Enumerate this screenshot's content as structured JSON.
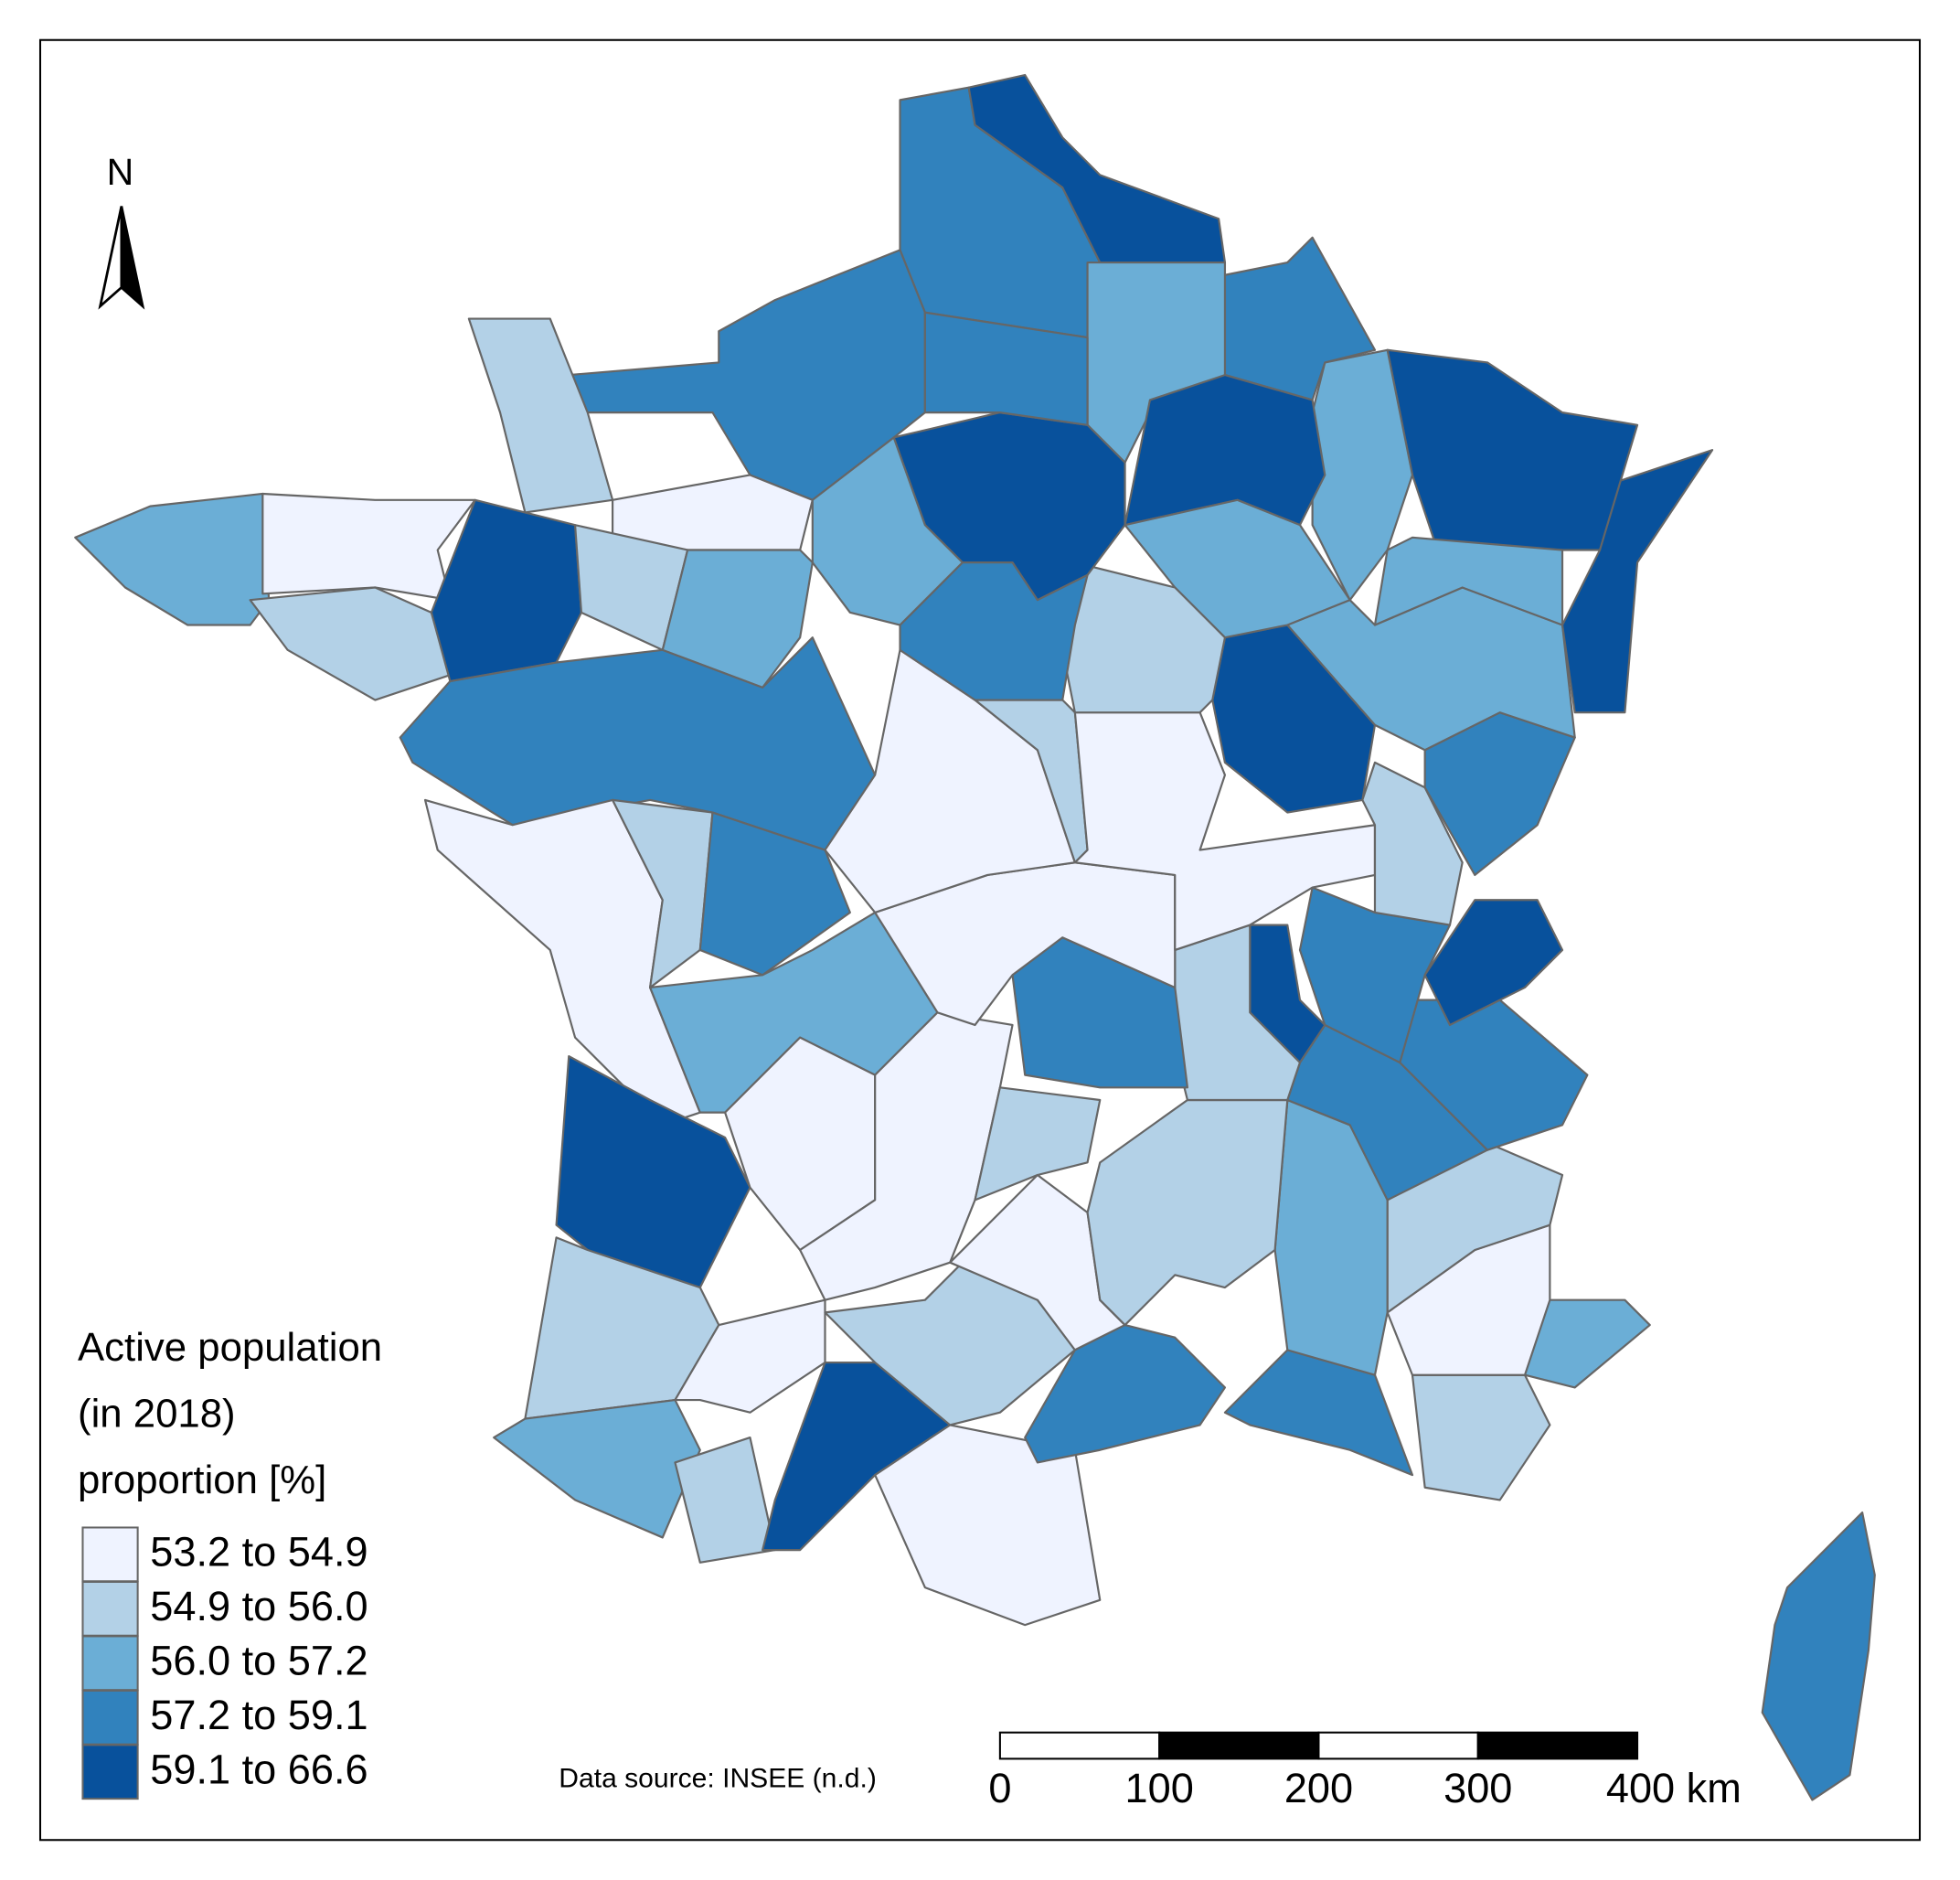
{
  "chart_data": {
    "type": "choropleth",
    "title": [
      "Active population",
      "(in 2018)",
      "proportion [%]"
    ],
    "legend": [
      {
        "label": "53.2 to 54.9",
        "color": "#eff3ff"
      },
      {
        "label": "54.9 to 56.0",
        "color": "#b3d1e7"
      },
      {
        "label": "56.0 to 57.2",
        "color": "#6baed6"
      },
      {
        "label": "57.2 to 59.1",
        "color": "#3182bd"
      },
      {
        "label": "59.1 to 66.6",
        "color": "#08519c"
      }
    ],
    "source": "Data source: INSEE (n.d.)",
    "north": "N",
    "scale_bar": {
      "xlim": [
        0,
        400
      ],
      "xticks": [
        0,
        100,
        200,
        300,
        {
          "value": 400,
          "label": "400 km"
        }
      ]
    }
  }
}
